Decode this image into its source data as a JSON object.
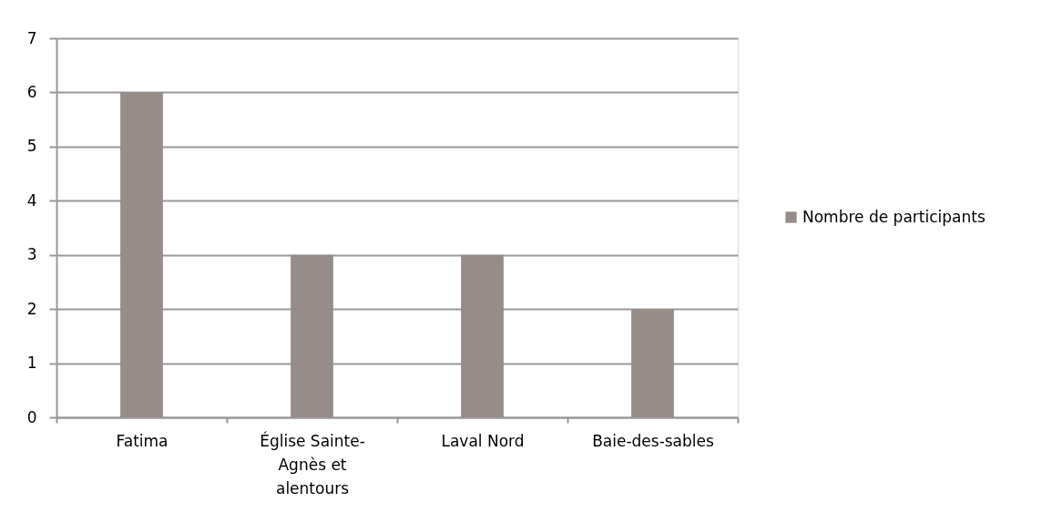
{
  "chart_data": {
    "type": "bar",
    "categories": [
      "Fatima",
      "Église Sainte-Agnès et alentours",
      "Laval Nord",
      "Baie-des-sables"
    ],
    "series": [
      {
        "name": "Nombre de participants",
        "color": "#968c89",
        "values": [
          6,
          3,
          3,
          2
        ]
      }
    ],
    "ylim": [
      0,
      7
    ],
    "yticks": [
      0,
      1,
      2,
      3,
      4,
      5,
      6,
      7
    ],
    "grid": "y",
    "legend": "right"
  }
}
